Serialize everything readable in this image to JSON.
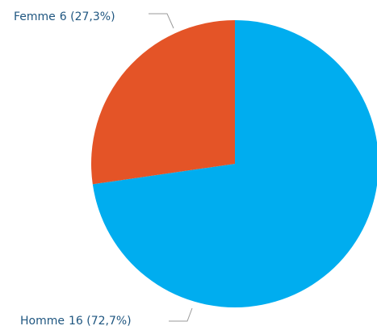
{
  "chart_data": {
    "type": "pie",
    "categories": [
      "Homme",
      "Femme"
    ],
    "values": [
      16,
      6
    ],
    "value_labels": [
      "16 (72,7%)",
      "6 (27,3%)"
    ],
    "colors": [
      "#00adef",
      "#e45427"
    ]
  }
}
